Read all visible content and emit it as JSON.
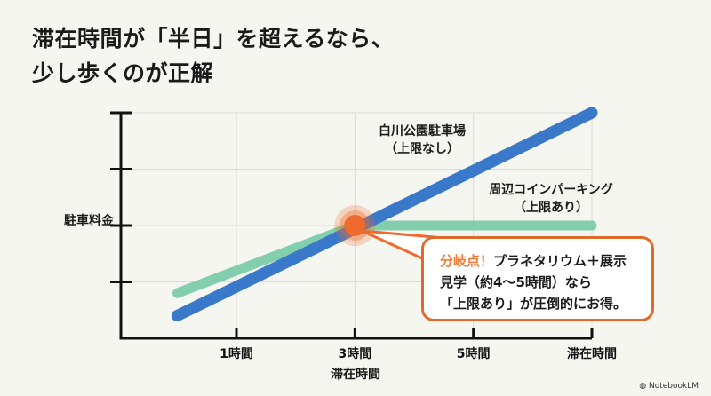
{
  "title_lines": [
    "滞在時間が「半日」を超えるなら、",
    "少し歩くのが正解"
  ],
  "colors": {
    "blue": "#3a78c9",
    "green": "#7ccba8",
    "orange": "#ef6a2c",
    "axis": "#111111",
    "grid": "#dcdcd6"
  },
  "chart_data": {
    "type": "line",
    "xlabel": "滞在時間",
    "ylabel": "駐車料金",
    "x_ticks": [
      {
        "value": 1,
        "label": "1時間"
      },
      {
        "value": 3,
        "label": "3時間"
      },
      {
        "value": 5,
        "label": "5時間"
      },
      {
        "value": 7,
        "label": "滞在時間"
      }
    ],
    "y_ticks": [
      1,
      2,
      3,
      4
    ],
    "xlim": [
      -0.95,
      7
    ],
    "ylim": [
      0,
      4
    ],
    "grid": true,
    "series": [
      {
        "name": "白川公園駐車場",
        "sub": "（上限なし）",
        "color": "#3a78c9",
        "x": [
          0,
          7
        ],
        "y": [
          0.4,
          4.0
        ]
      },
      {
        "name": "周辺コインパーキング",
        "sub": "（上限あり）",
        "color": "#7ccba8",
        "x": [
          0,
          3,
          7
        ],
        "y": [
          0.8,
          2.0,
          2.0
        ]
      }
    ],
    "annotation": {
      "x": 3,
      "y": 2,
      "highlight": "分岐点！",
      "text": "プラネタリウム＋展示見学（約4〜5時間）なら「上限あり」が圧倒的にお得。",
      "lines": [
        "プラネタリウム＋展示",
        "見学（約4〜5時間）なら",
        "「上限あり」が圧倒的にお得。"
      ]
    }
  },
  "footer": {
    "brand": "NotebookLM"
  }
}
